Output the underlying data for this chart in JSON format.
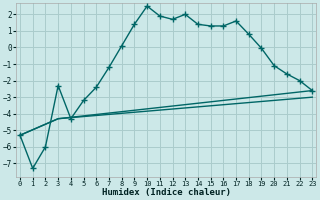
{
  "xlabel": "Humidex (Indice chaleur)",
  "bg_color": "#cce8e8",
  "grid_color": "#aacccc",
  "line_color": "#006666",
  "xlim": [
    -0.3,
    23.3
  ],
  "ylim": [
    -7.8,
    2.7
  ],
  "yticks": [
    -7,
    -6,
    -5,
    -4,
    -3,
    -2,
    -1,
    0,
    1,
    2
  ],
  "xticks": [
    0,
    1,
    2,
    3,
    4,
    5,
    6,
    7,
    8,
    9,
    10,
    11,
    12,
    13,
    14,
    15,
    16,
    17,
    18,
    19,
    20,
    21,
    22,
    23
  ],
  "line1_x": [
    0,
    1,
    2,
    3,
    4,
    5,
    6,
    7,
    8,
    9,
    10,
    11,
    12,
    13,
    14,
    15,
    16,
    17,
    18,
    19,
    20,
    21,
    22,
    23
  ],
  "line1_y": [
    -5.3,
    -7.3,
    -6.0,
    -2.3,
    -4.3,
    -3.2,
    -2.4,
    -1.2,
    0.1,
    1.4,
    2.5,
    1.9,
    1.7,
    2.0,
    1.4,
    1.3,
    1.3,
    1.6,
    0.8,
    -0.05,
    -1.1,
    -1.6,
    -2.0,
    -2.6
  ],
  "line2_x": [
    0,
    3,
    23
  ],
  "line2_y": [
    -5.3,
    -4.3,
    -3.0
  ],
  "line3_x": [
    0,
    3,
    23
  ],
  "line3_y": [
    -5.3,
    -4.3,
    -2.6
  ]
}
